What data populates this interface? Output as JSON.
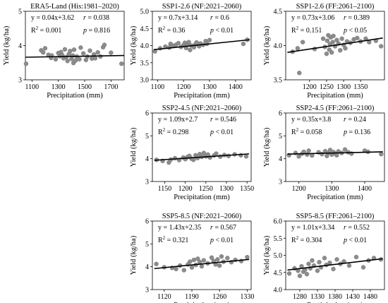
{
  "chart_data": [
    {
      "id": "p1",
      "type": "scatter",
      "title": "ERA5-Land (His:1981–2020)",
      "xlabel": "Precipitation (mm)",
      "ylabel": "Yield (kg/ha)",
      "xlim": [
        1050,
        1800
      ],
      "ylim": [
        3.0,
        5.0
      ],
      "xticks": [
        1100,
        1300,
        1500,
        1700
      ],
      "yticks": [
        3,
        4,
        5
      ],
      "eq": "y = 0.04x+3.62",
      "r": "0.038",
      "r2": "0.001",
      "p": "= 0.816",
      "fit": [
        [
          1050,
          3.66
        ],
        [
          1800,
          3.71
        ]
      ],
      "points": [
        [
          1055,
          3.47
        ],
        [
          1170,
          3.86
        ],
        [
          1185,
          3.8
        ],
        [
          1200,
          3.92
        ],
        [
          1225,
          3.73
        ],
        [
          1245,
          3.64
        ],
        [
          1250,
          3.71
        ],
        [
          1280,
          3.6
        ],
        [
          1300,
          3.78
        ],
        [
          1310,
          3.69
        ],
        [
          1320,
          3.81
        ],
        [
          1330,
          3.72
        ],
        [
          1340,
          3.63
        ],
        [
          1350,
          3.89
        ],
        [
          1360,
          3.66
        ],
        [
          1370,
          3.55
        ],
        [
          1380,
          3.75
        ],
        [
          1390,
          3.84
        ],
        [
          1400,
          3.61
        ],
        [
          1410,
          3.71
        ],
        [
          1415,
          3.49
        ],
        [
          1420,
          3.88
        ],
        [
          1430,
          3.56
        ],
        [
          1440,
          3.68
        ],
        [
          1460,
          3.6
        ],
        [
          1470,
          3.94
        ],
        [
          1490,
          3.77
        ],
        [
          1510,
          3.58
        ],
        [
          1520,
          3.68
        ],
        [
          1540,
          3.85
        ],
        [
          1555,
          3.62
        ],
        [
          1570,
          3.74
        ],
        [
          1580,
          3.63
        ],
        [
          1600,
          3.8
        ],
        [
          1620,
          3.68
        ],
        [
          1640,
          3.95
        ],
        [
          1650,
          4.02
        ],
        [
          1700,
          3.79
        ],
        [
          1780,
          3.47
        ]
      ]
    },
    {
      "id": "p2",
      "type": "scatter",
      "title": "SSP1-2.6 (NF:2021–2060)",
      "xlabel": "Precipitation (mm)",
      "ylabel": "Yield (kg/ha)",
      "xlim": [
        1080,
        1460
      ],
      "ylim": [
        3.0,
        5.0
      ],
      "xticks": [
        1100,
        1200,
        1300,
        1400
      ],
      "yticks": [
        3.0,
        3.5,
        4.0,
        4.5,
        5.0
      ],
      "eq": "y = 0.7x+3.14",
      "r": "0.6",
      "r2": "0.36",
      "p": "< 0.01",
      "fit": [
        [
          1085,
          3.88
        ],
        [
          1455,
          4.17
        ]
      ],
      "points": [
        [
          1090,
          3.83
        ],
        [
          1110,
          3.92
        ],
        [
          1130,
          3.97
        ],
        [
          1145,
          3.94
        ],
        [
          1150,
          4.05
        ],
        [
          1160,
          3.99
        ],
        [
          1170,
          4.02
        ],
        [
          1180,
          4.07
        ],
        [
          1190,
          3.96
        ],
        [
          1200,
          4.01
        ],
        [
          1205,
          4.08
        ],
        [
          1210,
          3.93
        ],
        [
          1215,
          4.04
        ],
        [
          1220,
          4.1
        ],
        [
          1225,
          3.87
        ],
        [
          1230,
          4.0
        ],
        [
          1240,
          3.95
        ],
        [
          1245,
          4.03
        ],
        [
          1250,
          4.09
        ],
        [
          1260,
          3.98
        ],
        [
          1265,
          4.06
        ],
        [
          1275,
          4.02
        ],
        [
          1285,
          4.13
        ],
        [
          1290,
          4.05
        ],
        [
          1300,
          4.16
        ],
        [
          1430,
          4.05
        ],
        [
          1445,
          4.17
        ]
      ]
    },
    {
      "id": "p3",
      "type": "scatter",
      "title": "SSP1-2.6 (FF:2061–2100)",
      "xlabel": "Precipitation (mm)",
      "ylabel": "Yield (kg/ha)",
      "xlim": [
        1130,
        1420
      ],
      "ylim": [
        3.5,
        4.5
      ],
      "xticks": [
        1200,
        1250,
        1300,
        1350
      ],
      "yticks": [
        3.5,
        4.0,
        4.5
      ],
      "eq": "y = 0.73x+3.06",
      "r": "0.389",
      "r2": "0.151",
      "p": "< 0.05",
      "fit": [
        [
          1135,
          3.9
        ],
        [
          1415,
          4.11
        ]
      ],
      "points": [
        [
          1150,
          3.91
        ],
        [
          1165,
          3.96
        ],
        [
          1170,
          3.6
        ],
        [
          1180,
          4.05
        ],
        [
          1215,
          3.95
        ],
        [
          1240,
          4.1
        ],
        [
          1245,
          3.98
        ],
        [
          1250,
          3.88
        ],
        [
          1252,
          4.07
        ],
        [
          1255,
          4.15
        ],
        [
          1258,
          3.94
        ],
        [
          1260,
          4.02
        ],
        [
          1262,
          4.12
        ],
        [
          1265,
          3.9
        ],
        [
          1268,
          4.05
        ],
        [
          1270,
          4.14
        ],
        [
          1275,
          3.99
        ],
        [
          1280,
          4.08
        ],
        [
          1285,
          4.03
        ],
        [
          1290,
          3.93
        ],
        [
          1295,
          4.1
        ],
        [
          1300,
          4.01
        ],
        [
          1305,
          3.96
        ],
        [
          1310,
          4.06
        ],
        [
          1320,
          4.04
        ],
        [
          1330,
          4.09
        ],
        [
          1340,
          4.11
        ],
        [
          1350,
          4.06
        ],
        [
          1365,
          4.1
        ],
        [
          1375,
          4.05
        ],
        [
          1395,
          4.07
        ],
        [
          1410,
          3.99
        ]
      ]
    },
    {
      "id": "p4",
      "type": "scatter",
      "title": "SSP2-4.5 (NF:2021–2060)",
      "xlabel": "Precipitation (mm)",
      "ylabel": "Yield (kg/ha)",
      "xlim": [
        1120,
        1360
      ],
      "ylim": [
        3.0,
        6.0
      ],
      "xticks": [
        1150,
        1200,
        1250,
        1300,
        1350
      ],
      "yticks": [
        3,
        4,
        5,
        6
      ],
      "eq": "y = 1.09x+2.7",
      "r": "0.546",
      "r2": "0.298",
      "p": "< 0.01",
      "fit": [
        [
          1125,
          3.93
        ],
        [
          1355,
          4.21
        ]
      ],
      "points": [
        [
          1130,
          3.95
        ],
        [
          1145,
          3.9
        ],
        [
          1160,
          3.83
        ],
        [
          1165,
          3.96
        ],
        [
          1175,
          4.02
        ],
        [
          1185,
          3.94
        ],
        [
          1195,
          4.05
        ],
        [
          1200,
          3.98
        ],
        [
          1205,
          4.07
        ],
        [
          1210,
          4.12
        ],
        [
          1215,
          4.0
        ],
        [
          1220,
          3.95
        ],
        [
          1225,
          4.15
        ],
        [
          1230,
          4.03
        ],
        [
          1235,
          4.2
        ],
        [
          1240,
          4.08
        ],
        [
          1245,
          4.25
        ],
        [
          1250,
          4.1
        ],
        [
          1255,
          4.18
        ],
        [
          1260,
          4.05
        ],
        [
          1270,
          4.14
        ],
        [
          1275,
          4.22
        ],
        [
          1285,
          4.09
        ],
        [
          1295,
          4.16
        ],
        [
          1305,
          4.12
        ],
        [
          1320,
          4.19
        ],
        [
          1335,
          4.15
        ],
        [
          1348,
          4.1
        ]
      ]
    },
    {
      "id": "p5",
      "type": "scatter",
      "title": "SSP2-4.5 (FF:2061–2100)",
      "xlabel": "Precipitation (mm)",
      "ylabel": "Yield (kg/ha)",
      "xlim": [
        1160,
        1460
      ],
      "ylim": [
        3.0,
        6.0
      ],
      "xticks": [
        1200,
        1300,
        1400
      ],
      "yticks": [
        3,
        4,
        5,
        6
      ],
      "eq": "y = 0.35x+3.8",
      "r": "0.24",
      "r2": "0.058",
      "p": "= 0.136",
      "fit": [
        [
          1165,
          4.2
        ],
        [
          1455,
          4.3
        ]
      ],
      "points": [
        [
          1170,
          4.15
        ],
        [
          1190,
          4.25
        ],
        [
          1200,
          4.1
        ],
        [
          1210,
          4.22
        ],
        [
          1215,
          4.3
        ],
        [
          1225,
          4.18
        ],
        [
          1230,
          4.35
        ],
        [
          1240,
          4.14
        ],
        [
          1260,
          4.28
        ],
        [
          1270,
          4.2
        ],
        [
          1280,
          4.33
        ],
        [
          1285,
          4.12
        ],
        [
          1290,
          4.26
        ],
        [
          1295,
          4.38
        ],
        [
          1300,
          4.18
        ],
        [
          1305,
          4.29
        ],
        [
          1310,
          4.22
        ],
        [
          1315,
          4.15
        ],
        [
          1320,
          4.32
        ],
        [
          1330,
          4.25
        ],
        [
          1340,
          4.4
        ],
        [
          1350,
          4.28
        ],
        [
          1360,
          4.22
        ],
        [
          1400,
          4.35
        ],
        [
          1410,
          4.3
        ],
        [
          1450,
          4.2
        ]
      ]
    },
    {
      "id": "p6",
      "type": "scatter",
      "title": "SSP5-8.5 (NF:2021–2060)",
      "xlabel": "Precipitation (mm)",
      "ylabel": "Yield (kg/ha)",
      "xlim": [
        1090,
        1340
      ],
      "ylim": [
        3.0,
        6.0
      ],
      "xticks": [
        1120,
        1190,
        1260,
        1330
      ],
      "yticks": [
        3,
        4,
        5,
        6
      ],
      "eq": "y = 1.43x+2.35",
      "r": "0.567",
      "r2": "0.321",
      "p": "< 0.01",
      "fit": [
        [
          1095,
          3.92
        ],
        [
          1335,
          4.32
        ]
      ],
      "points": [
        [
          1100,
          4.12
        ],
        [
          1120,
          3.98
        ],
        [
          1140,
          3.95
        ],
        [
          1150,
          3.9
        ],
        [
          1160,
          4.05
        ],
        [
          1170,
          3.85
        ],
        [
          1180,
          4.1
        ],
        [
          1185,
          4.22
        ],
        [
          1190,
          3.97
        ],
        [
          1195,
          4.3
        ],
        [
          1200,
          4.08
        ],
        [
          1205,
          4.35
        ],
        [
          1210,
          4.2
        ],
        [
          1215,
          4.02
        ],
        [
          1220,
          4.28
        ],
        [
          1230,
          4.15
        ],
        [
          1240,
          4.4
        ],
        [
          1245,
          4.25
        ],
        [
          1250,
          4.1
        ],
        [
          1255,
          4.32
        ],
        [
          1260,
          4.05
        ],
        [
          1265,
          4.45
        ],
        [
          1270,
          4.22
        ],
        [
          1280,
          4.38
        ],
        [
          1290,
          4.2
        ],
        [
          1300,
          4.3
        ],
        [
          1315,
          4.25
        ],
        [
          1330,
          4.42
        ]
      ]
    },
    {
      "id": "p7",
      "type": "scatter",
      "title": "SSP5-8.5 (FF:2061–2100)",
      "xlabel": "Precipitation (mm)",
      "ylabel": "Yield (kg/ha)",
      "xlim": [
        1240,
        1520
      ],
      "ylim": [
        4.0,
        6.0
      ],
      "xticks": [
        1280,
        1330,
        1380,
        1430,
        1480
      ],
      "yticks": [
        4.0,
        4.5,
        5.0,
        5.5,
        6.0
      ],
      "eq": "y = 1.01x+3.34",
      "r": "0.552",
      "r2": "0.304",
      "p": "< 0.01",
      "fit": [
        [
          1245,
          4.57
        ],
        [
          1515,
          4.9
        ]
      ],
      "points": [
        [
          1250,
          4.47
        ],
        [
          1265,
          4.62
        ],
        [
          1275,
          4.55
        ],
        [
          1280,
          4.4
        ],
        [
          1285,
          4.68
        ],
        [
          1290,
          4.52
        ],
        [
          1295,
          4.58
        ],
        [
          1300,
          4.45
        ],
        [
          1305,
          4.75
        ],
        [
          1310,
          4.62
        ],
        [
          1315,
          4.85
        ],
        [
          1320,
          4.7
        ],
        [
          1330,
          4.55
        ],
        [
          1335,
          4.8
        ],
        [
          1340,
          4.65
        ],
        [
          1350,
          4.92
        ],
        [
          1355,
          4.72
        ],
        [
          1365,
          4.78
        ],
        [
          1375,
          4.6
        ],
        [
          1385,
          4.88
        ],
        [
          1395,
          4.75
        ],
        [
          1405,
          4.82
        ],
        [
          1420,
          4.7
        ],
        [
          1440,
          4.95
        ],
        [
          1460,
          4.65
        ],
        [
          1475,
          4.85
        ],
        [
          1490,
          4.92
        ],
        [
          1510,
          4.88
        ]
      ]
    }
  ],
  "labels": {
    "r_symbol": "r"
  }
}
